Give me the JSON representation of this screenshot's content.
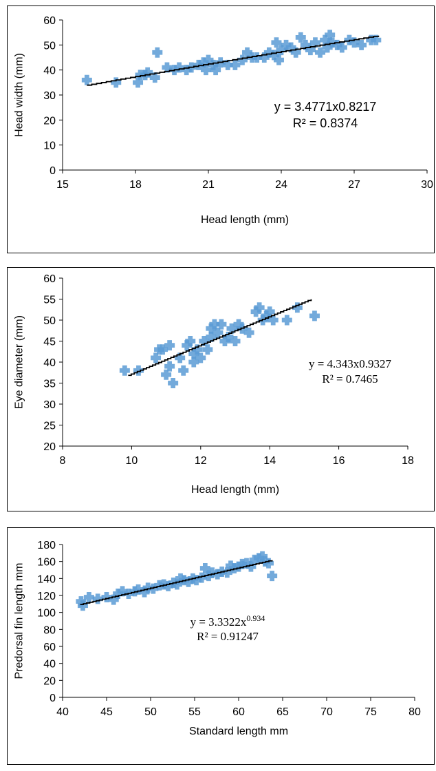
{
  "chart_data": [
    {
      "type": "scatter",
      "xlabel": "Head length (mm)",
      "ylabel": "Head width (mm)",
      "xlim": [
        15,
        30
      ],
      "ylim": [
        0,
        60
      ],
      "xticks": [
        "15",
        "18",
        "21",
        "24",
        "27",
        "30"
      ],
      "yticks": [
        "0",
        "10",
        "20",
        "30",
        "40",
        "50",
        "60"
      ],
      "equation": "y = 3.4771x0.8217",
      "r2": "R² = 0.8374",
      "trendline": {
        "a": 3.4771,
        "b": 0.8217,
        "xmin": 16.0,
        "xmax": 28.0
      },
      "points": [
        [
          16.0,
          36
        ],
        [
          17.2,
          35
        ],
        [
          18.1,
          35
        ],
        [
          18.2,
          38
        ],
        [
          18.4,
          38
        ],
        [
          18.5,
          39
        ],
        [
          18.8,
          37
        ],
        [
          18.9,
          47
        ],
        [
          19.3,
          41
        ],
        [
          19.6,
          40
        ],
        [
          19.8,
          41
        ],
        [
          20.1,
          40
        ],
        [
          20.3,
          41
        ],
        [
          20.6,
          42
        ],
        [
          20.8,
          43
        ],
        [
          20.9,
          40
        ],
        [
          21.0,
          44
        ],
        [
          21.2,
          42
        ],
        [
          21.3,
          40
        ],
        [
          21.5,
          43
        ],
        [
          21.8,
          42
        ],
        [
          22.1,
          42
        ],
        [
          22.4,
          44
        ],
        [
          22.6,
          47
        ],
        [
          22.8,
          45
        ],
        [
          23.0,
          45
        ],
        [
          23.3,
          45
        ],
        [
          23.5,
          47
        ],
        [
          23.7,
          46
        ],
        [
          23.8,
          51
        ],
        [
          23.9,
          44
        ],
        [
          24.0,
          48
        ],
        [
          24.2,
          50
        ],
        [
          24.4,
          49
        ],
        [
          24.6,
          47
        ],
        [
          24.8,
          53
        ],
        [
          25.0,
          50
        ],
        [
          25.2,
          48
        ],
        [
          25.4,
          51
        ],
        [
          25.6,
          47
        ],
        [
          25.8,
          52
        ],
        [
          25.9,
          49
        ],
        [
          26.0,
          54
        ],
        [
          26.1,
          51
        ],
        [
          26.3,
          50
        ],
        [
          26.5,
          49
        ],
        [
          26.8,
          52
        ],
        [
          27.0,
          51
        ],
        [
          27.3,
          50
        ],
        [
          27.7,
          52
        ],
        [
          27.9,
          52
        ]
      ]
    },
    {
      "type": "scatter",
      "xlabel": "Head length (mm)",
      "ylabel": "Eye diameter (mm)",
      "xlim": [
        8,
        18
      ],
      "ylim": [
        20,
        60
      ],
      "xticks": [
        "8",
        "10",
        "12",
        "14",
        "16",
        "18"
      ],
      "yticks": [
        "20",
        "25",
        "30",
        "35",
        "40",
        "45",
        "50",
        "55",
        "60"
      ],
      "equation": "y = 4.343x0.9327",
      "r2": "R² = 0.7465",
      "trendline": {
        "a": 4.343,
        "b": 0.9327,
        "xmin": 9.9,
        "xmax": 15.2
      },
      "points": [
        [
          9.8,
          38
        ],
        [
          10.2,
          38
        ],
        [
          10.7,
          41
        ],
        [
          10.8,
          43
        ],
        [
          10.9,
          43
        ],
        [
          11.0,
          37
        ],
        [
          11.1,
          44
        ],
        [
          11.1,
          39
        ],
        [
          11.2,
          35
        ],
        [
          11.4,
          41
        ],
        [
          11.5,
          38
        ],
        [
          11.6,
          44
        ],
        [
          11.7,
          45
        ],
        [
          11.8,
          42
        ],
        [
          11.8,
          40
        ],
        [
          11.9,
          43
        ],
        [
          12.0,
          41
        ],
        [
          12.1,
          45
        ],
        [
          12.2,
          43
        ],
        [
          12.3,
          46
        ],
        [
          12.3,
          48
        ],
        [
          12.4,
          49
        ],
        [
          12.5,
          47
        ],
        [
          12.6,
          49
        ],
        [
          12.7,
          45
        ],
        [
          12.8,
          46
        ],
        [
          12.9,
          48
        ],
        [
          13.0,
          45
        ],
        [
          13.1,
          49
        ],
        [
          13.2,
          48
        ],
        [
          13.4,
          47
        ],
        [
          13.6,
          52
        ],
        [
          13.7,
          53
        ],
        [
          13.8,
          50
        ],
        [
          13.9,
          51
        ],
        [
          14.0,
          52
        ],
        [
          14.1,
          50
        ],
        [
          14.5,
          50
        ],
        [
          14.8,
          53
        ],
        [
          15.3,
          51
        ]
      ]
    },
    {
      "type": "scatter",
      "xlabel": "Standard length mm",
      "ylabel": "Predorsal  fin length mm",
      "xlim": [
        40,
        80
      ],
      "ylim": [
        0,
        180
      ],
      "xticks": [
        "40",
        "45",
        "50",
        "55",
        "60",
        "65",
        "70",
        "75",
        "80"
      ],
      "yticks": [
        "0",
        "20",
        "40",
        "60",
        "80",
        "100",
        "120",
        "140",
        "160",
        "180"
      ],
      "equation_base": "y = 3.3322x",
      "equation_exp": "0.934",
      "r2": "R² = 0.91247",
      "trendline": {
        "a": 3.3322,
        "b": 0.934,
        "xmin": 42.0,
        "xmax": 63.8
      },
      "points": [
        [
          42.1,
          113
        ],
        [
          42.3,
          108
        ],
        [
          43.0,
          118
        ],
        [
          44.0,
          116
        ],
        [
          45.0,
          118
        ],
        [
          45.8,
          115
        ],
        [
          46.3,
          122
        ],
        [
          46.8,
          125
        ],
        [
          47.5,
          122
        ],
        [
          48.2,
          125
        ],
        [
          48.6,
          127
        ],
        [
          49.3,
          124
        ],
        [
          49.7,
          129
        ],
        [
          50.3,
          128
        ],
        [
          51.0,
          132
        ],
        [
          51.5,
          133
        ],
        [
          52.0,
          131
        ],
        [
          52.6,
          135
        ],
        [
          53.0,
          133
        ],
        [
          53.4,
          140
        ],
        [
          53.8,
          138
        ],
        [
          54.3,
          136
        ],
        [
          54.8,
          140
        ],
        [
          55.2,
          138
        ],
        [
          55.8,
          141
        ],
        [
          56.2,
          152
        ],
        [
          56.6,
          143
        ],
        [
          57.0,
          147
        ],
        [
          57.6,
          145
        ],
        [
          58.1,
          148
        ],
        [
          58.7,
          147
        ],
        [
          59.1,
          155
        ],
        [
          59.5,
          152
        ],
        [
          60.0,
          154
        ],
        [
          60.4,
          157
        ],
        [
          60.9,
          158
        ],
        [
          61.4,
          154
        ],
        [
          61.8,
          162
        ],
        [
          62.3,
          164
        ],
        [
          62.7,
          166
        ],
        [
          63.0,
          160
        ],
        [
          63.4,
          158
        ],
        [
          63.8,
          143
        ]
      ]
    }
  ]
}
